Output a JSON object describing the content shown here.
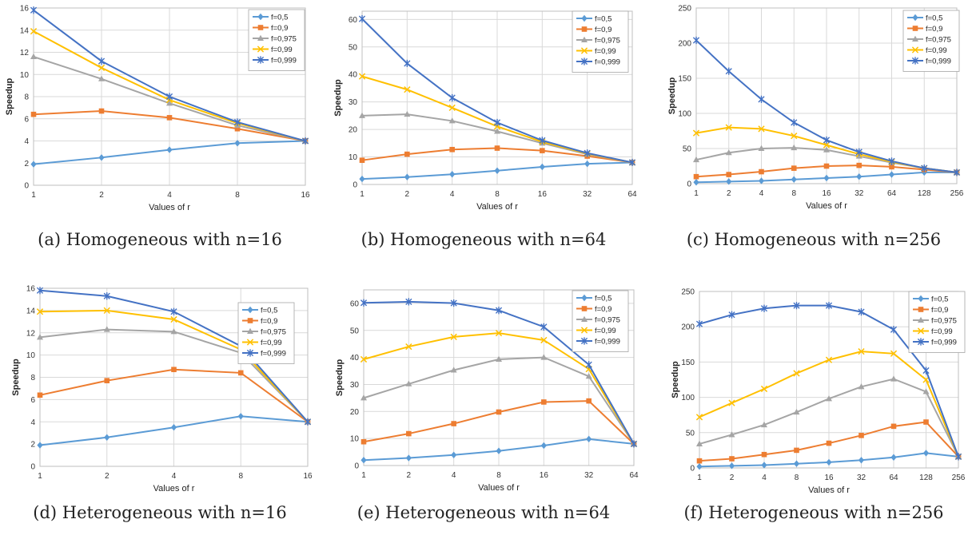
{
  "chart_data": [
    {
      "type": "line",
      "caption": "(a) Homogeneous with n=16",
      "xlabel": "Values of r",
      "ylabel": "Speedup",
      "categories": [
        "1",
        "2",
        "4",
        "8",
        "16"
      ],
      "ylim": [
        0,
        16
      ],
      "yticks": [
        0,
        2,
        4,
        6,
        8,
        10,
        12,
        14,
        16
      ],
      "series": [
        {
          "name": "f=0,5",
          "color": "#5B9BD5",
          "marker": "diamond",
          "values": [
            1.9,
            2.5,
            3.2,
            3.8,
            4.0
          ]
        },
        {
          "name": "f=0,9",
          "color": "#ED7D31",
          "marker": "square",
          "values": [
            6.4,
            6.7,
            6.1,
            5.1,
            4.0
          ]
        },
        {
          "name": "f=0,975",
          "color": "#A5A5A5",
          "marker": "triangle",
          "values": [
            11.6,
            9.6,
            7.4,
            5.4,
            4.0
          ]
        },
        {
          "name": "f=0,99",
          "color": "#FFC000",
          "marker": "x",
          "values": [
            13.9,
            10.6,
            7.7,
            5.6,
            4.0
          ]
        },
        {
          "name": "f=0,999",
          "color": "#4472C4",
          "marker": "star",
          "values": [
            15.8,
            11.2,
            8.0,
            5.7,
            4.0
          ]
        }
      ]
    },
    {
      "type": "line",
      "caption": "(b) Homogeneous with n=64",
      "xlabel": "Values of r",
      "ylabel": "Speedup",
      "categories": [
        "1",
        "2",
        "4",
        "8",
        "16",
        "32",
        "64"
      ],
      "ylim": [
        0,
        63
      ],
      "yticks": [
        0,
        10,
        20,
        30,
        40,
        50,
        60
      ],
      "series": [
        {
          "name": "f=0,5",
          "color": "#5B9BD5",
          "marker": "diamond",
          "values": [
            2.0,
            2.7,
            3.7,
            5.0,
            6.4,
            7.5,
            8.0
          ]
        },
        {
          "name": "f=0,9",
          "color": "#ED7D31",
          "marker": "square",
          "values": [
            8.8,
            11.0,
            12.7,
            13.2,
            12.3,
            10.3,
            8.0
          ]
        },
        {
          "name": "f=0,975",
          "color": "#A5A5A5",
          "marker": "triangle",
          "values": [
            25.0,
            25.5,
            23.1,
            19.3,
            15.0,
            11.0,
            8.0
          ]
        },
        {
          "name": "f=0,99",
          "color": "#FFC000",
          "marker": "x",
          "values": [
            39.3,
            34.5,
            27.9,
            21.1,
            15.5,
            11.2,
            8.0
          ]
        },
        {
          "name": "f=0,999",
          "color": "#4472C4",
          "marker": "star",
          "values": [
            60.2,
            44.0,
            31.5,
            22.5,
            16.0,
            11.4,
            8.0
          ]
        }
      ]
    },
    {
      "type": "line",
      "caption": "(c) Homogeneous with n=256",
      "xlabel": "Values of r",
      "ylabel": "Speedup",
      "categories": [
        "1",
        "2",
        "4",
        "8",
        "16",
        "32",
        "64",
        "128",
        "256"
      ],
      "ylim": [
        0,
        250
      ],
      "yticks": [
        0,
        50,
        100,
        150,
        200,
        250
      ],
      "series": [
        {
          "name": "f=0,5",
          "color": "#5B9BD5",
          "marker": "diamond",
          "values": [
            2,
            3,
            4,
            6,
            8,
            10,
            13,
            16,
            16
          ]
        },
        {
          "name": "f=0,9",
          "color": "#ED7D31",
          "marker": "square",
          "values": [
            10,
            13,
            17,
            22,
            25,
            26,
            24,
            20,
            16
          ]
        },
        {
          "name": "f=0,975",
          "color": "#A5A5A5",
          "marker": "triangle",
          "values": [
            34,
            44,
            50,
            51,
            48,
            39,
            30,
            22,
            16
          ]
        },
        {
          "name": "f=0,99",
          "color": "#FFC000",
          "marker": "x",
          "values": [
            72,
            80,
            78,
            68,
            55,
            42,
            31,
            22,
            16
          ]
        },
        {
          "name": "f=0,999",
          "color": "#4472C4",
          "marker": "star",
          "values": [
            204,
            160,
            120,
            87,
            62,
            45,
            32,
            22,
            16
          ]
        }
      ]
    },
    {
      "type": "line",
      "caption": "(d) Heterogeneous with n=16",
      "xlabel": "Values of r",
      "ylabel": "Speedup",
      "categories": [
        "1",
        "2",
        "4",
        "8",
        "16"
      ],
      "ylim": [
        0,
        16
      ],
      "yticks": [
        0,
        2,
        4,
        6,
        8,
        10,
        12,
        14,
        16
      ],
      "series": [
        {
          "name": "f=0,5",
          "color": "#5B9BD5",
          "marker": "diamond",
          "values": [
            1.9,
            2.6,
            3.5,
            4.5,
            4.0
          ]
        },
        {
          "name": "f=0,9",
          "color": "#ED7D31",
          "marker": "square",
          "values": [
            6.4,
            7.7,
            8.7,
            8.4,
            4.0
          ]
        },
        {
          "name": "f=0,975",
          "color": "#A5A5A5",
          "marker": "triangle",
          "values": [
            11.6,
            12.3,
            12.1,
            10.2,
            4.0
          ]
        },
        {
          "name": "f=0,99",
          "color": "#FFC000",
          "marker": "x",
          "values": [
            13.9,
            14.0,
            13.2,
            10.5,
            4.0
          ]
        },
        {
          "name": "f=0,999",
          "color": "#4472C4",
          "marker": "star",
          "values": [
            15.8,
            15.3,
            13.9,
            10.8,
            4.0
          ]
        }
      ]
    },
    {
      "type": "line",
      "caption": "(e) Heterogeneous with n=64",
      "xlabel": "Values of r",
      "ylabel": "Speedup",
      "categories": [
        "1",
        "2",
        "4",
        "8",
        "16",
        "32",
        "64"
      ],
      "ylim": [
        0,
        65
      ],
      "yticks": [
        0,
        10,
        20,
        30,
        40,
        50,
        60
      ],
      "series": [
        {
          "name": "f=0,5",
          "color": "#5B9BD5",
          "marker": "diamond",
          "values": [
            2.0,
            2.8,
            3.9,
            5.4,
            7.4,
            9.8,
            8.0
          ]
        },
        {
          "name": "f=0,9",
          "color": "#ED7D31",
          "marker": "square",
          "values": [
            8.8,
            11.8,
            15.5,
            19.8,
            23.5,
            23.9,
            8.0
          ]
        },
        {
          "name": "f=0,975",
          "color": "#A5A5A5",
          "marker": "triangle",
          "values": [
            25.0,
            30.2,
            35.3,
            39.3,
            40.0,
            33.0,
            8.0
          ]
        },
        {
          "name": "f=0,99",
          "color": "#FFC000",
          "marker": "x",
          "values": [
            39.3,
            44.0,
            47.6,
            49.0,
            46.4,
            35.7,
            8.0
          ]
        },
        {
          "name": "f=0,999",
          "color": "#4472C4",
          "marker": "star",
          "values": [
            60.2,
            60.6,
            60.1,
            57.4,
            51.3,
            37.3,
            8.0
          ]
        }
      ]
    },
    {
      "type": "line",
      "caption": "(f) Heterogeneous with n=256",
      "xlabel": "Values of r",
      "ylabel": "Speedup",
      "categories": [
        "1",
        "2",
        "4",
        "8",
        "16",
        "32",
        "64",
        "128",
        "256"
      ],
      "ylim": [
        0,
        250
      ],
      "yticks": [
        0,
        50,
        100,
        150,
        200,
        250
      ],
      "series": [
        {
          "name": "f=0,5",
          "color": "#5B9BD5",
          "marker": "diamond",
          "values": [
            2,
            3,
            4,
            6,
            8,
            11,
            15,
            21,
            16
          ]
        },
        {
          "name": "f=0,9",
          "color": "#ED7D31",
          "marker": "square",
          "values": [
            10,
            13,
            19,
            25,
            35,
            46,
            59,
            65,
            16
          ]
        },
        {
          "name": "f=0,975",
          "color": "#A5A5A5",
          "marker": "triangle",
          "values": [
            34,
            47,
            61,
            79,
            98,
            115,
            126,
            108,
            16
          ]
        },
        {
          "name": "f=0,99",
          "color": "#FFC000",
          "marker": "x",
          "values": [
            72,
            92,
            112,
            134,
            153,
            165,
            162,
            125,
            16
          ]
        },
        {
          "name": "f=0,999",
          "color": "#4472C4",
          "marker": "star",
          "values": [
            204,
            217,
            226,
            230,
            230,
            221,
            196,
            138,
            16
          ]
        }
      ]
    }
  ]
}
